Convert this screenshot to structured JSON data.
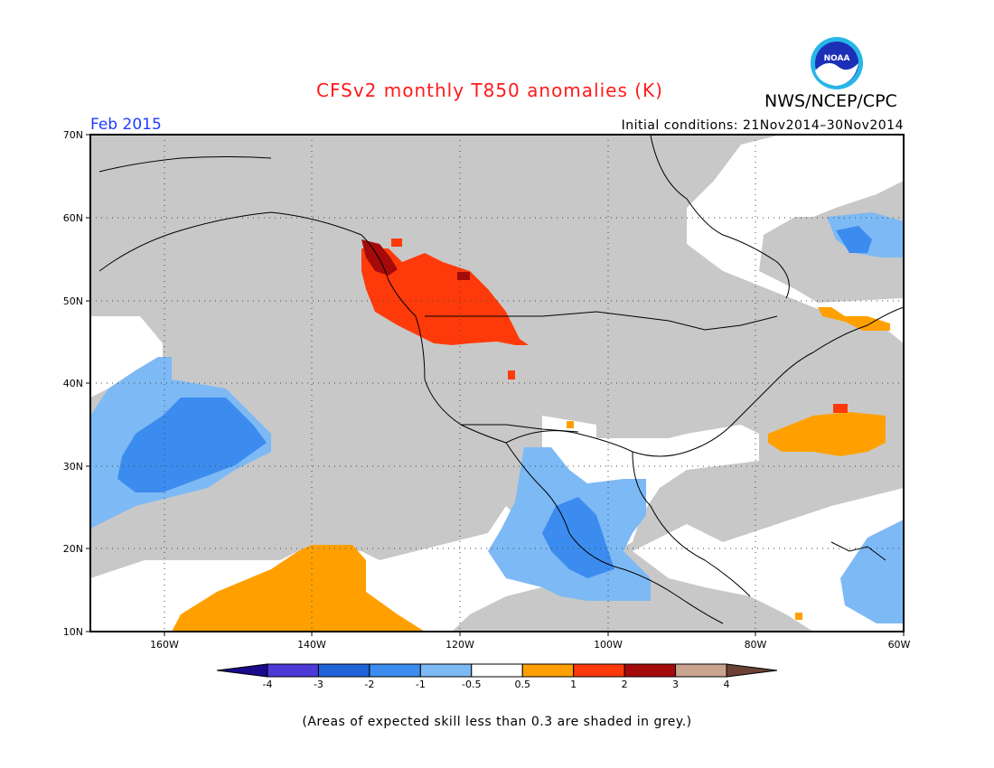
{
  "header": {
    "title": "CFSv2 monthly T850 anomalies (K)",
    "agency": "NWS/NCEP/CPC",
    "month": "Feb 2015",
    "initial_conditions": "Initial conditions: 21Nov2014–30Nov2014",
    "logo_text": "NOAA"
  },
  "map": {
    "lat_labels": [
      "70N",
      "60N",
      "50N",
      "40N",
      "30N",
      "20N",
      "10N"
    ],
    "lon_labels": [
      "160W",
      "140W",
      "120W",
      "100W",
      "80W",
      "60W"
    ],
    "region": "North America / NE Pacific",
    "lat_range": [
      10,
      70
    ],
    "lon_range": [
      -170,
      -60
    ]
  },
  "legend": {
    "labels": [
      "-4",
      "-3",
      "-2",
      "-1",
      "-0.5",
      "0.5",
      "1",
      "2",
      "3",
      "4"
    ],
    "colors": [
      "#1a0a8c",
      "#4b3ad6",
      "#1f63d9",
      "#3c8cef",
      "#7db9f5",
      "#ffffff",
      "#ffa000",
      "#ff3a0a",
      "#a50a0a",
      "#c9a48f",
      "#6b4233"
    ],
    "grey_color": "#c8c8c8"
  },
  "footnote": "(Areas of expected skill less than 0.3 are shaded in grey.)"
}
